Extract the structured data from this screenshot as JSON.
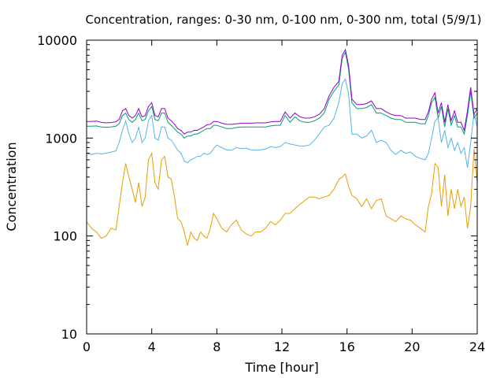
{
  "chart_data": {
    "type": "line",
    "title": "Concentration, ranges: 0-30 nm, 0-100 nm, 0-300 nm, total (5/9/1)",
    "xlabel": "Time [hour]",
    "ylabel": "Concentration",
    "xlim": [
      0,
      24
    ],
    "ylim": [
      10,
      10000
    ],
    "yscale": "log",
    "grid": false,
    "legend": "none",
    "xticks": [
      0,
      4,
      8,
      12,
      16,
      20,
      24
    ],
    "yticks": [
      10,
      100,
      1000,
      10000
    ],
    "series": [
      {
        "color": "#e69f00",
        "x": [
          0,
          0.3,
          0.6,
          0.9,
          1.2,
          1.5,
          1.8,
          2.0,
          2.2,
          2.4,
          2.6,
          2.8,
          3.0,
          3.2,
          3.4,
          3.6,
          3.8,
          4.0,
          4.2,
          4.4,
          4.6,
          4.8,
          5.0,
          5.2,
          5.4,
          5.6,
          5.8,
          6.0,
          6.2,
          6.4,
          6.6,
          6.8,
          7.0,
          7.2,
          7.4,
          7.6,
          7.8,
          8.0,
          8.3,
          8.6,
          8.9,
          9.2,
          9.5,
          9.8,
          10.1,
          10.4,
          10.7,
          11.0,
          11.3,
          11.6,
          11.9,
          12.2,
          12.5,
          12.8,
          13.1,
          13.4,
          13.7,
          14.0,
          14.3,
          14.6,
          14.9,
          15.2,
          15.5,
          15.7,
          15.9,
          16.1,
          16.3,
          16.6,
          16.9,
          17.2,
          17.5,
          17.8,
          18.1,
          18.4,
          18.7,
          19.0,
          19.3,
          19.6,
          19.9,
          20.2,
          20.5,
          20.8,
          21.0,
          21.2,
          21.4,
          21.6,
          21.8,
          22.0,
          22.2,
          22.4,
          22.6,
          22.8,
          23.0,
          23.2,
          23.4,
          23.6,
          23.8,
          24.0
        ],
        "values": [
          140,
          120,
          110,
          95,
          100,
          120,
          115,
          200,
          350,
          550,
          400,
          300,
          220,
          350,
          200,
          250,
          600,
          700,
          350,
          300,
          600,
          650,
          400,
          380,
          250,
          150,
          140,
          110,
          80,
          110,
          95,
          90,
          110,
          100,
          95,
          120,
          170,
          150,
          120,
          110,
          130,
          145,
          115,
          105,
          100,
          110,
          110,
          120,
          140,
          130,
          145,
          170,
          170,
          190,
          210,
          230,
          250,
          250,
          240,
          250,
          260,
          300,
          380,
          400,
          430,
          320,
          260,
          240,
          200,
          240,
          190,
          230,
          240,
          160,
          150,
          140,
          160,
          150,
          145,
          130,
          120,
          110,
          200,
          270,
          550,
          500,
          200,
          420,
          160,
          300,
          190,
          300,
          200,
          250,
          120,
          200,
          780,
          350
        ],
        "note_ref": "0-30 nm"
      },
      {
        "color": "#56b4e9",
        "x": [
          0,
          0.3,
          0.6,
          0.9,
          1.2,
          1.5,
          1.8,
          2.0,
          2.2,
          2.4,
          2.6,
          2.8,
          3.0,
          3.2,
          3.4,
          3.6,
          3.8,
          4.0,
          4.2,
          4.4,
          4.6,
          4.8,
          5.0,
          5.2,
          5.4,
          5.6,
          5.8,
          6.0,
          6.2,
          6.4,
          6.6,
          6.8,
          7.0,
          7.2,
          7.4,
          7.6,
          7.8,
          8.0,
          8.3,
          8.6,
          8.9,
          9.2,
          9.5,
          9.8,
          10.1,
          10.4,
          10.7,
          11.0,
          11.3,
          11.6,
          11.9,
          12.2,
          12.5,
          12.8,
          13.1,
          13.4,
          13.7,
          14.0,
          14.3,
          14.6,
          14.9,
          15.2,
          15.5,
          15.7,
          15.9,
          16.1,
          16.3,
          16.6,
          16.9,
          17.2,
          17.5,
          17.8,
          18.1,
          18.4,
          18.7,
          19.0,
          19.3,
          19.6,
          19.9,
          20.2,
          20.5,
          20.8,
          21.0,
          21.2,
          21.4,
          21.6,
          21.8,
          22.0,
          22.2,
          22.4,
          22.6,
          22.8,
          23.0,
          23.2,
          23.4,
          23.6,
          23.8,
          24.0
        ],
        "values": [
          700,
          680,
          700,
          690,
          700,
          720,
          740,
          900,
          1200,
          1500,
          1100,
          900,
          1000,
          1300,
          900,
          1000,
          1500,
          1700,
          1000,
          950,
          1300,
          1300,
          1000,
          950,
          850,
          750,
          700,
          580,
          560,
          600,
          620,
          650,
          650,
          700,
          680,
          700,
          780,
          850,
          800,
          760,
          750,
          800,
          780,
          790,
          760,
          750,
          760,
          770,
          820,
          800,
          820,
          900,
          870,
          850,
          830,
          830,
          850,
          950,
          1100,
          1300,
          1350,
          1600,
          2300,
          3600,
          4000,
          2800,
          1100,
          1100,
          1000,
          1050,
          1200,
          900,
          950,
          900,
          750,
          680,
          750,
          700,
          720,
          650,
          620,
          600,
          700,
          1000,
          1500,
          1600,
          900,
          1200,
          800,
          1000,
          750,
          900,
          700,
          800,
          500,
          900,
          1800,
          1300
        ],
        "note_ref": "0-100 nm"
      },
      {
        "color": "#009e73",
        "x": [
          0,
          0.3,
          0.6,
          0.9,
          1.2,
          1.5,
          1.8,
          2.0,
          2.2,
          2.4,
          2.6,
          2.8,
          3.0,
          3.2,
          3.4,
          3.6,
          3.8,
          4.0,
          4.2,
          4.4,
          4.6,
          4.8,
          5.0,
          5.2,
          5.4,
          5.6,
          5.8,
          6.0,
          6.2,
          6.4,
          6.6,
          6.8,
          7.0,
          7.2,
          7.4,
          7.6,
          7.8,
          8.0,
          8.3,
          8.6,
          8.9,
          9.2,
          9.5,
          9.8,
          10.1,
          10.4,
          10.7,
          11.0,
          11.3,
          11.6,
          11.9,
          12.2,
          12.5,
          12.8,
          13.1,
          13.4,
          13.7,
          14.0,
          14.3,
          14.6,
          14.9,
          15.2,
          15.5,
          15.7,
          15.9,
          16.1,
          16.3,
          16.6,
          16.9,
          17.2,
          17.5,
          17.8,
          18.1,
          18.4,
          18.7,
          19.0,
          19.3,
          19.6,
          19.9,
          20.2,
          20.5,
          20.8,
          21.0,
          21.2,
          21.4,
          21.6,
          21.8,
          22.0,
          22.2,
          22.4,
          22.6,
          22.8,
          23.0,
          23.2,
          23.4,
          23.6,
          23.8,
          24.0
        ],
        "values": [
          1320,
          1320,
          1330,
          1300,
          1290,
          1300,
          1320,
          1400,
          1700,
          1800,
          1550,
          1450,
          1550,
          1800,
          1500,
          1550,
          1900,
          2100,
          1550,
          1500,
          1800,
          1800,
          1450,
          1350,
          1250,
          1150,
          1100,
          1000,
          1050,
          1050,
          1100,
          1100,
          1150,
          1200,
          1250,
          1250,
          1350,
          1350,
          1300,
          1250,
          1250,
          1280,
          1300,
          1300,
          1300,
          1300,
          1300,
          1300,
          1330,
          1350,
          1350,
          1700,
          1450,
          1650,
          1500,
          1450,
          1450,
          1500,
          1600,
          1800,
          2500,
          3000,
          3500,
          6500,
          7500,
          5000,
          2300,
          2000,
          2000,
          2050,
          2200,
          1800,
          1800,
          1700,
          1600,
          1550,
          1550,
          1450,
          1450,
          1450,
          1400,
          1400,
          1700,
          2300,
          2600,
          1600,
          2100,
          1300,
          2000,
          1350,
          1700,
          1300,
          1300,
          1100,
          1700,
          3000,
          1600,
          1800
        ],
        "note_ref": "0-300 nm"
      },
      {
        "color": "#9400d3",
        "x": [
          0,
          0.3,
          0.6,
          0.9,
          1.2,
          1.5,
          1.8,
          2.0,
          2.2,
          2.4,
          2.6,
          2.8,
          3.0,
          3.2,
          3.4,
          3.6,
          3.8,
          4.0,
          4.2,
          4.4,
          4.6,
          4.8,
          5.0,
          5.2,
          5.4,
          5.6,
          5.8,
          6.0,
          6.2,
          6.4,
          6.6,
          6.8,
          7.0,
          7.2,
          7.4,
          7.6,
          7.8,
          8.0,
          8.3,
          8.6,
          8.9,
          9.2,
          9.5,
          9.8,
          10.1,
          10.4,
          10.7,
          11.0,
          11.3,
          11.6,
          11.9,
          12.2,
          12.5,
          12.8,
          13.1,
          13.4,
          13.7,
          14.0,
          14.3,
          14.6,
          14.9,
          15.2,
          15.5,
          15.7,
          15.9,
          16.1,
          16.3,
          16.6,
          16.9,
          17.2,
          17.5,
          17.8,
          18.1,
          18.4,
          18.7,
          19.0,
          19.3,
          19.6,
          19.9,
          20.2,
          20.5,
          20.8,
          21.0,
          21.2,
          21.4,
          21.6,
          21.8,
          22.0,
          22.2,
          22.4,
          22.6,
          22.8,
          23.0,
          23.2,
          23.4,
          23.6,
          23.8,
          24.0
        ],
        "values": [
          1480,
          1480,
          1490,
          1450,
          1430,
          1440,
          1470,
          1550,
          1900,
          2000,
          1700,
          1600,
          1700,
          2000,
          1650,
          1700,
          2100,
          2300,
          1700,
          1650,
          2000,
          2000,
          1600,
          1500,
          1380,
          1250,
          1200,
          1100,
          1150,
          1150,
          1200,
          1200,
          1250,
          1300,
          1370,
          1380,
          1480,
          1480,
          1420,
          1380,
          1380,
          1400,
          1420,
          1420,
          1420,
          1430,
          1430,
          1430,
          1460,
          1480,
          1480,
          1850,
          1600,
          1800,
          1650,
          1600,
          1600,
          1650,
          1750,
          2000,
          2700,
          3300,
          3800,
          7000,
          8000,
          5500,
          2500,
          2200,
          2200,
          2250,
          2400,
          2000,
          2000,
          1850,
          1750,
          1700,
          1700,
          1600,
          1600,
          1600,
          1550,
          1550,
          1850,
          2500,
          2900,
          1800,
          2300,
          1450,
          2200,
          1500,
          1900,
          1450,
          1450,
          1200,
          1900,
          3300,
          1750,
          2000
        ],
        "note_ref": "total"
      }
    ]
  }
}
